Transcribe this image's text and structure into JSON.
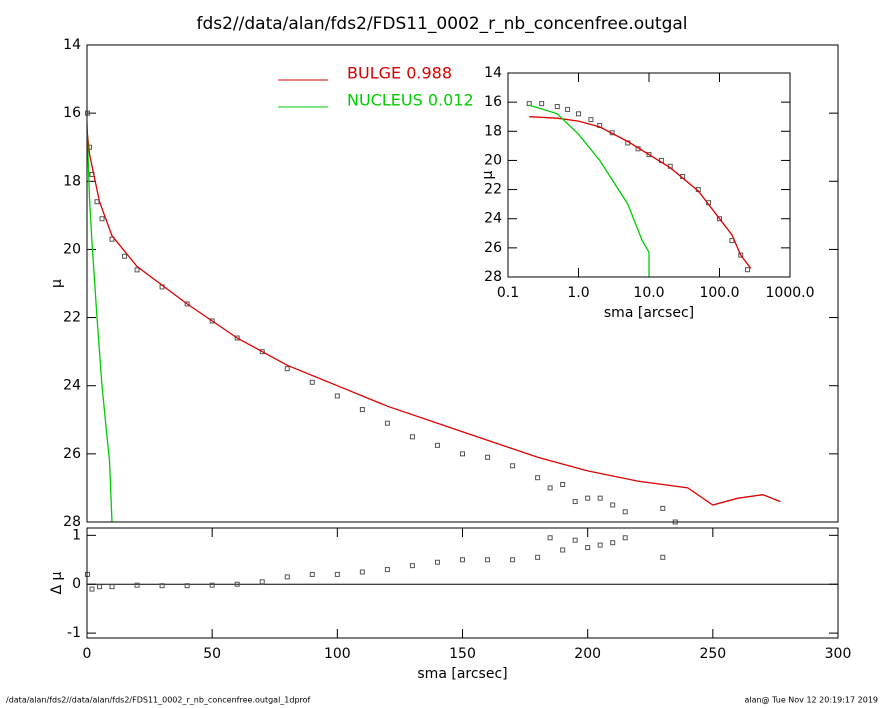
{
  "chart_data": [
    {
      "type": "line",
      "title": "fds2//data/alan/fds2/FDS11_0002_r_nb_concenfree.outgal",
      "ylabel": "μ",
      "xlim": [
        0,
        300
      ],
      "ylim": [
        28,
        14
      ],
      "yticks": [
        14,
        16,
        18,
        20,
        22,
        24,
        26,
        28
      ],
      "legend": "top-center",
      "series": [
        {
          "marker": "square",
          "color": "#555555",
          "x": [
            0.2,
            1,
            2,
            4,
            6,
            10,
            15,
            20,
            30,
            40,
            50,
            60,
            70,
            80,
            90,
            100,
            110,
            120,
            130,
            140,
            150,
            160,
            170,
            180,
            185,
            190,
            195,
            200,
            205,
            210,
            215,
            230,
            235
          ],
          "values": [
            16.0,
            17.0,
            17.8,
            18.6,
            19.1,
            19.7,
            20.2,
            20.6,
            21.1,
            21.6,
            22.1,
            22.6,
            23.0,
            23.5,
            23.9,
            24.3,
            24.7,
            25.1,
            25.5,
            25.75,
            26.0,
            26.1,
            26.35,
            26.7,
            27.0,
            26.9,
            27.4,
            27.3,
            27.3,
            27.5,
            27.7,
            27.6,
            28.0
          ]
        },
        {
          "name": "BULGE  0.988",
          "color": "#dd0000",
          "x": [
            0,
            1,
            5,
            10,
            20,
            40,
            60,
            80,
            100,
            120,
            140,
            160,
            180,
            200,
            220,
            240,
            250,
            260,
            270,
            277
          ],
          "values": [
            16.5,
            17.2,
            18.6,
            19.6,
            20.5,
            21.6,
            22.6,
            23.4,
            24.0,
            24.6,
            25.1,
            25.6,
            26.1,
            26.5,
            26.8,
            27.0,
            27.5,
            27.3,
            27.2,
            27.4
          ]
        },
        {
          "name": "NUCLEUS  0.012",
          "color": "#00cc00",
          "x": [
            0,
            1,
            2,
            4,
            6,
            8,
            9,
            10
          ],
          "values": [
            16.3,
            18.5,
            19.8,
            22.0,
            24.0,
            25.5,
            26.2,
            28.0
          ]
        }
      ]
    },
    {
      "type": "line",
      "xlabel": "sma [arcsec]",
      "ylabel": "Δ μ",
      "xlim": [
        0,
        300
      ],
      "xticks": [
        0,
        50,
        100,
        150,
        200,
        250,
        300
      ],
      "ylim": [
        -1.1,
        1.15
      ],
      "yticks": [
        -1,
        0,
        1
      ],
      "zero_line": true,
      "series": [
        {
          "marker": "square",
          "color": "#555555",
          "x": [
            0.2,
            2,
            5,
            10,
            20,
            30,
            40,
            50,
            60,
            70,
            80,
            90,
            100,
            110,
            120,
            130,
            140,
            150,
            160,
            170,
            180,
            185,
            190,
            195,
            200,
            205,
            210,
            215,
            230
          ],
          "values": [
            0.2,
            -0.1,
            -0.05,
            -0.05,
            -0.02,
            -0.03,
            -0.03,
            -0.02,
            0.0,
            0.05,
            0.15,
            0.2,
            0.2,
            0.25,
            0.3,
            0.38,
            0.45,
            0.5,
            0.5,
            0.5,
            0.55,
            0.95,
            0.7,
            0.9,
            0.75,
            0.8,
            0.85,
            0.95,
            0.55
          ]
        }
      ]
    },
    {
      "type": "line",
      "xlabel": "sma [arcsec]",
      "ylabel": "μ",
      "xlog": true,
      "xlim": [
        0.1,
        1000
      ],
      "xticks": [
        {
          "value": 0.1,
          "label": "0.1"
        },
        {
          "value": 1,
          "label": "1.0"
        },
        {
          "value": 10,
          "label": "10.0"
        },
        {
          "value": 100,
          "label": "100.0"
        },
        {
          "value": 1000,
          "label": "1000.0"
        }
      ],
      "ylim": [
        28,
        14
      ],
      "yticks": [
        14,
        16,
        18,
        20,
        22,
        24,
        26,
        28
      ],
      "series": [
        {
          "marker": "square",
          "color": "#555555",
          "x": [
            0.2,
            0.3,
            0.5,
            0.7,
            1,
            1.5,
            2,
            3,
            5,
            7,
            10,
            15,
            20,
            30,
            50,
            70,
            100,
            150,
            200,
            250
          ],
          "values": [
            16.1,
            16.1,
            16.3,
            16.5,
            16.8,
            17.2,
            17.6,
            18.1,
            18.8,
            19.2,
            19.6,
            20.0,
            20.4,
            21.1,
            22.0,
            22.9,
            24.0,
            25.5,
            26.5,
            27.5
          ]
        },
        {
          "color": "#dd0000",
          "x": [
            0.2,
            0.5,
            1,
            2,
            5,
            10,
            20,
            50,
            100,
            150,
            200,
            277
          ],
          "values": [
            17.0,
            17.1,
            17.3,
            17.7,
            18.7,
            19.6,
            20.5,
            22.1,
            24.0,
            25.1,
            26.5,
            27.4
          ]
        },
        {
          "color": "#00cc00",
          "x": [
            0.2,
            0.5,
            1,
            2,
            5,
            8,
            10,
            10
          ],
          "values": [
            16.2,
            16.8,
            18.2,
            20.0,
            23.0,
            25.5,
            26.3,
            28.0
          ]
        }
      ]
    }
  ],
  "footer": {
    "left": "/data/alan/fds2//data/alan/fds2/FDS11_0002_r_nb_concenfree.outgal_1dprof",
    "right": "alan@  Tue Nov 12 20:19:17 2019"
  }
}
